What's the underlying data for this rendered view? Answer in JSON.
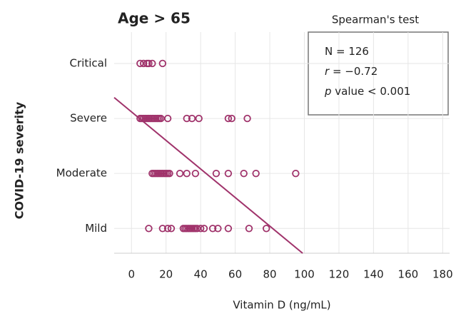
{
  "chart_data": {
    "type": "scatter",
    "title": "Age > 65",
    "xlabel": "Vitamin D (ng/mL)",
    "ylabel": "COVID-19 severity",
    "xlim": [
      -10,
      184
    ],
    "xticks": [
      0,
      20,
      40,
      60,
      80,
      100,
      120,
      140,
      160,
      180
    ],
    "ylim": [
      0.55,
      4.57
    ],
    "yticks": [
      {
        "value": 1,
        "label": "Mild"
      },
      {
        "value": 2,
        "label": "Moderate"
      },
      {
        "value": 3,
        "label": "Severe"
      },
      {
        "value": 4,
        "label": "Critical"
      }
    ],
    "grid": true,
    "series": [
      {
        "color": "#a0336b",
        "x": [
          5,
          7,
          9,
          10,
          12,
          18,
          5,
          6,
          7,
          8,
          9,
          10,
          11,
          12,
          13,
          14,
          15,
          16,
          17,
          21,
          32,
          35,
          39,
          56,
          58,
          67,
          12,
          13,
          14,
          15,
          16,
          17,
          18,
          19,
          20,
          21,
          22,
          28,
          32,
          37,
          49,
          56,
          65,
          72,
          95,
          10,
          18,
          21,
          23,
          30,
          31,
          32,
          33,
          34,
          35,
          36,
          37,
          38,
          40,
          42,
          47,
          50,
          56,
          68,
          78
        ],
        "y": [
          4,
          4,
          4,
          4,
          4,
          4,
          3,
          3,
          3,
          3,
          3,
          3,
          3,
          3,
          3,
          3,
          3,
          3,
          3,
          3,
          3,
          3,
          3,
          3,
          3,
          3,
          2,
          2,
          2,
          2,
          2,
          2,
          2,
          2,
          2,
          2,
          2,
          2,
          2,
          2,
          2,
          2,
          2,
          2,
          2,
          1,
          1,
          1,
          1,
          1,
          1,
          1,
          1,
          1,
          1,
          1,
          1,
          1,
          1,
          1,
          1,
          1,
          1,
          1,
          1
        ]
      }
    ],
    "fit": {
      "color": "#a0336b",
      "x": [
        -10,
        99
      ],
      "y": [
        3.38,
        0.55
      ]
    },
    "annotation": {
      "title": "Spearman's test",
      "lines": [
        [
          "N = 126"
        ],
        [
          "r",
          " = −0.72"
        ],
        [
          "p",
          " value < 0.001"
        ]
      ]
    }
  }
}
